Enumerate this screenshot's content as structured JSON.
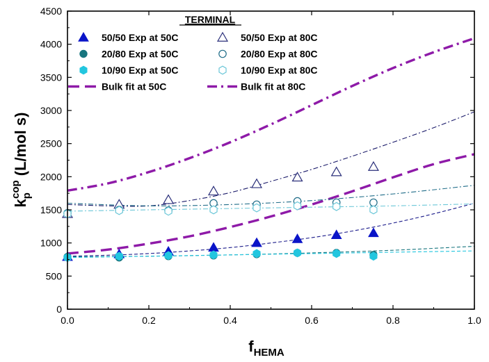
{
  "chart_data": {
    "type": "scatter",
    "xlabel": "f",
    "xlabel_sub": "HEMA",
    "ylabel": "k",
    "ylabel_sup": "cop",
    "ylabel_sub": "p",
    "ylabel_unit": " (L/mol s)",
    "xlim": [
      0,
      1.0
    ],
    "ylim": [
      0,
      4500
    ],
    "xticks": [
      0.0,
      0.2,
      0.4,
      0.6,
      0.8,
      1.0
    ],
    "xtick_labels": [
      "0.0",
      "0.2",
      "0.4",
      "0.6",
      "0.8",
      "1.0"
    ],
    "yticks": [
      0,
      500,
      1000,
      1500,
      2000,
      2500,
      3000,
      3500,
      4000,
      4500
    ],
    "ytick_labels": [
      "0",
      "500",
      "1000",
      "1500",
      "2000",
      "2500",
      "3000",
      "3500",
      "4000",
      "4500"
    ],
    "grid": false,
    "legend": {
      "title": "TERMINAL",
      "placement": "top-center",
      "entries": [
        {
          "label": "50/50 Exp at 50C",
          "ref": "s50_50_50"
        },
        {
          "label": "50/50 Exp at 80C",
          "ref": "s50_50_80"
        },
        {
          "label": "20/80 Exp at 50C",
          "ref": "s20_80_50"
        },
        {
          "label": "20/80 Exp at 80C",
          "ref": "s20_80_80"
        },
        {
          "label": "10/90 Exp at 50C",
          "ref": "s10_90_50"
        },
        {
          "label": "10/90 Exp at 80C",
          "ref": "s10_90_80"
        },
        {
          "label": "Bulk fit at 50C",
          "ref": "bulk50"
        },
        {
          "label": "Bulk fit at 80C",
          "ref": "bulk80"
        }
      ]
    },
    "series": [
      {
        "id": "s50_50_50",
        "marker": "triangle-filled",
        "color": "#0a14c8",
        "x": [
          0.0,
          0.127,
          0.248,
          0.359,
          0.465,
          0.565,
          0.661,
          0.752
        ],
        "y": [
          790,
          830,
          870,
          930,
          1000,
          1060,
          1120,
          1150
        ]
      },
      {
        "id": "s50_50_80",
        "marker": "triangle-open",
        "color": "#2a2f7a",
        "x": [
          0.0,
          0.127,
          0.248,
          0.359,
          0.465,
          0.565,
          0.661,
          0.752
        ],
        "y": [
          1440,
          1580,
          1650,
          1780,
          1890,
          1990,
          2070,
          2150
        ]
      },
      {
        "id": "s20_80_50",
        "marker": "circle-filled",
        "color": "#17757e",
        "x": [
          0.0,
          0.127,
          0.248,
          0.359,
          0.465,
          0.565,
          0.661,
          0.752
        ],
        "y": [
          790,
          780,
          800,
          810,
          830,
          850,
          850,
          820
        ]
      },
      {
        "id": "s20_80_80",
        "marker": "circle-open",
        "color": "#1f6c88",
        "x": [
          0.0,
          0.127,
          0.248,
          0.359,
          0.465,
          0.565,
          0.661,
          0.752
        ],
        "y": [
          1450,
          1500,
          1490,
          1600,
          1580,
          1630,
          1610,
          1610
        ]
      },
      {
        "id": "s10_90_50",
        "marker": "hexagon-filled",
        "color": "#22c6df",
        "x": [
          0.0,
          0.127,
          0.248,
          0.359,
          0.465,
          0.565,
          0.661,
          0.752
        ],
        "y": [
          780,
          800,
          810,
          820,
          840,
          850,
          840,
          800
        ]
      },
      {
        "id": "s10_90_80",
        "marker": "hexagon-open",
        "color": "#6bc7d8",
        "x": [
          0.0,
          0.127,
          0.248,
          0.359,
          0.465,
          0.565,
          0.661,
          0.752
        ],
        "y": [
          1440,
          1490,
          1480,
          1500,
          1530,
          1560,
          1550,
          1500
        ]
      },
      {
        "id": "bulk50",
        "type": "line",
        "style": "dashed-thick",
        "color": "#8e1aa8",
        "x": [
          0.0,
          0.1,
          0.2,
          0.3,
          0.4,
          0.5,
          0.6,
          0.7,
          0.8,
          0.9,
          1.0
        ],
        "y": [
          840,
          900,
          990,
          1100,
          1240,
          1400,
          1580,
          1780,
          1990,
          2190,
          2340
        ]
      },
      {
        "id": "bulk80",
        "type": "line",
        "style": "dashdot-thick",
        "color": "#8e1aa8",
        "x": [
          0.0,
          0.1,
          0.2,
          0.3,
          0.4,
          0.5,
          0.6,
          0.7,
          0.8,
          0.9,
          1.0
        ],
        "y": [
          1790,
          1900,
          2070,
          2280,
          2520,
          2790,
          3080,
          3370,
          3640,
          3880,
          4090
        ]
      },
      {
        "id": "fit_50_50_50",
        "type": "line",
        "style": "dashed-thin",
        "color": "#1b1b8a",
        "x": [
          0.0,
          0.1,
          0.2,
          0.3,
          0.4,
          0.5,
          0.6,
          0.7,
          0.8,
          0.9,
          1.0
        ],
        "y": [
          800,
          815,
          840,
          880,
          930,
          1000,
          1080,
          1180,
          1300,
          1440,
          1600
        ]
      },
      {
        "id": "fit_50_50_80",
        "type": "line",
        "style": "dashdot-thin",
        "color": "#1b1b6a",
        "x": [
          0.0,
          0.1,
          0.2,
          0.3,
          0.4,
          0.5,
          0.6,
          0.7,
          0.8,
          0.9,
          1.0
        ],
        "y": [
          1580,
          1560,
          1560,
          1640,
          1760,
          1930,
          2110,
          2310,
          2520,
          2740,
          2980
        ]
      },
      {
        "id": "fit_20_80_50",
        "type": "line",
        "style": "dashed-thin",
        "color": "#17757e",
        "x": [
          0.0,
          0.2,
          0.4,
          0.6,
          0.8,
          1.0
        ],
        "y": [
          790,
          800,
          820,
          850,
          890,
          950
        ]
      },
      {
        "id": "fit_20_80_80",
        "type": "line",
        "style": "dashdot-thin",
        "color": "#1f6c88",
        "x": [
          0.0,
          0.2,
          0.4,
          0.6,
          0.8,
          1.0
        ],
        "y": [
          1600,
          1560,
          1580,
          1640,
          1740,
          1870
        ]
      },
      {
        "id": "fit_10_90_50",
        "type": "line",
        "style": "dashed-thin",
        "color": "#22c6df",
        "x": [
          0.0,
          0.2,
          0.4,
          0.6,
          0.8,
          1.0
        ],
        "y": [
          780,
          800,
          820,
          840,
          860,
          880
        ]
      },
      {
        "id": "fit_10_90_80",
        "type": "line",
        "style": "dashdot-thin",
        "color": "#6bc7d8",
        "x": [
          0.0,
          0.2,
          0.4,
          0.6,
          0.8,
          1.0
        ],
        "y": [
          1480,
          1500,
          1520,
          1540,
          1560,
          1590
        ]
      }
    ]
  }
}
